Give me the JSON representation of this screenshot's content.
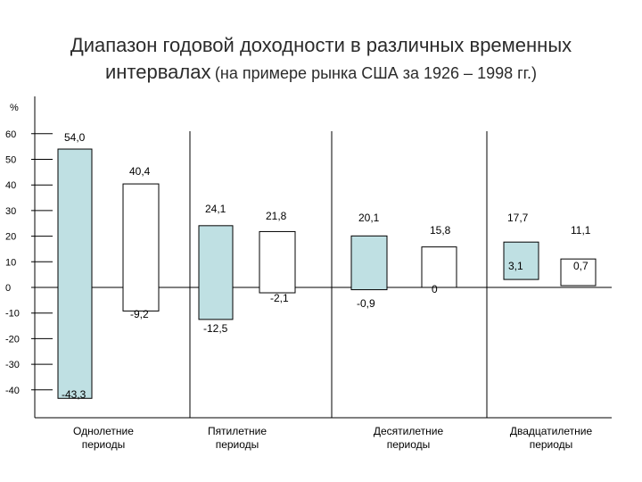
{
  "title_line1": "Диапазон годовой доходности в различных временных",
  "title_line2_main": "интервалах",
  "title_line2_sub": "(на примере рынка США за 1926 – 1998 гг.)",
  "colors": {
    "stock_bar": "#bfe0e3",
    "bond_bar": "#ffffff",
    "outline": "#000000"
  },
  "chart_data": {
    "type": "bar",
    "title": "Диапазон годовой доходности в различных временных интервалах (на примере рынка США за 1926 – 1998 гг.)",
    "ylabel": "%",
    "ylim": [
      -48,
      72
    ],
    "yticks": [
      60,
      50,
      40,
      30,
      20,
      10,
      0,
      -10,
      -20,
      -30,
      -40
    ],
    "grid": false,
    "categories": [
      [
        "Однолетние",
        "периоды"
      ],
      [
        "Пятилетние",
        "периоды"
      ],
      [
        "Десятилетние",
        "периоды"
      ],
      [
        "Двадцатилетние",
        "периоды"
      ]
    ],
    "series": [
      {
        "max": [
          54.0,
          24.1,
          20.1,
          17.7
        ],
        "min": [
          -43.3,
          -12.5,
          -0.9,
          3.1
        ],
        "max_labels": [
          "54,0",
          "24,1",
          "20,1",
          "17,7"
        ],
        "min_labels": [
          "-43,3",
          "-12,5",
          "-0,9",
          "3,1"
        ]
      },
      {
        "max": [
          40.4,
          21.8,
          15.8,
          11.1
        ],
        "min": [
          -9.2,
          -2.1,
          0,
          0.7
        ],
        "max_labels": [
          "40,4",
          "21,8",
          "15,8",
          "11,1"
        ],
        "min_labels": [
          "-9,2",
          "-2,1",
          "0",
          "0,7"
        ]
      }
    ]
  }
}
